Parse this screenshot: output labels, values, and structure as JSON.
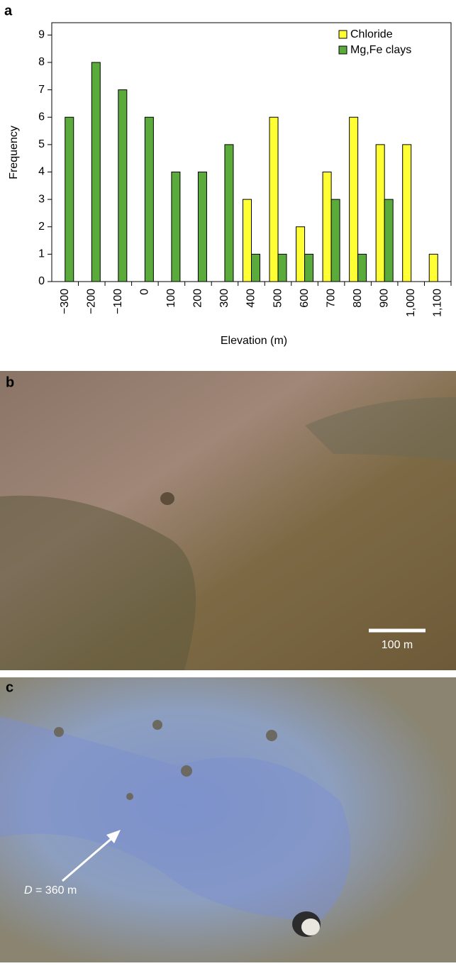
{
  "chart_data": {
    "type": "bar",
    "x_label": "Elevation (m)",
    "y_label": "Frequency",
    "categories": [
      "−300",
      "−200",
      "−100",
      "0",
      "100",
      "200",
      "300",
      "400",
      "500",
      "600",
      "700",
      "800",
      "900",
      "1,000",
      "1,100"
    ],
    "series": [
      {
        "name": "Chloride",
        "color": "#ffff33",
        "values": [
          0,
          0,
          0,
          0,
          0,
          0,
          0,
          3,
          6,
          2,
          4,
          6,
          5,
          5,
          1
        ]
      },
      {
        "name": "Mg,Fe clays",
        "color": "#5aab3b",
        "values": [
          6,
          8,
          7,
          6,
          4,
          4,
          5,
          1,
          1,
          1,
          3,
          1,
          3,
          0,
          0
        ]
      }
    ],
    "ylim": [
      0,
      9.45
    ],
    "yticks": [
      0,
      1,
      2,
      3,
      4,
      5,
      6,
      7,
      8,
      9
    ],
    "grid": false,
    "legend": "top-right"
  },
  "panels": {
    "a": "a",
    "b": "b",
    "c": "c",
    "scale_bar": "100 m",
    "diameter_symbol": "D",
    "diameter_text": " = 360 m"
  }
}
